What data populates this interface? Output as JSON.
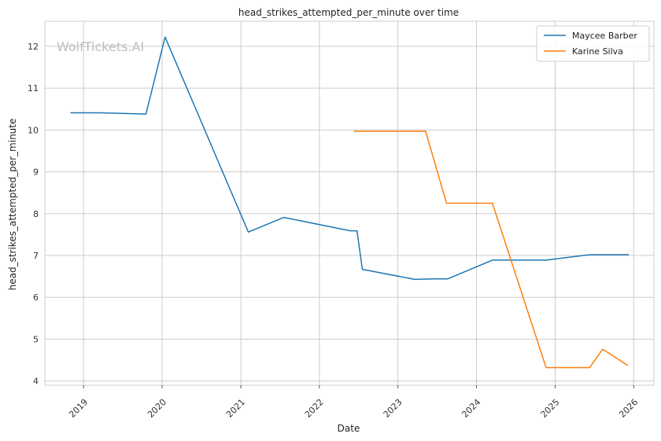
{
  "chart_data": {
    "type": "line",
    "title": "head_strikes_attempted_per_minute over time",
    "xlabel": "Date",
    "ylabel": "head_strikes_attempted_per_minute",
    "watermark": "WolfTickets.AI",
    "grid": true,
    "legend_position": "top-right",
    "x_ticks": [
      "2019",
      "2020",
      "2021",
      "2022",
      "2023",
      "2024",
      "2025",
      "2026"
    ],
    "y_ticks": [
      4,
      5,
      6,
      7,
      8,
      9,
      10,
      11,
      12
    ],
    "xlim": [
      "2018-07-05",
      "2026-04-05"
    ],
    "ylim": [
      3.9,
      12.6
    ],
    "series": [
      {
        "name": "Maycee Barber",
        "color": "#1f77b4",
        "points": [
          [
            "2018-11-01",
            10.41
          ],
          [
            "2019-03-20",
            10.41
          ],
          [
            "2019-10-18",
            10.38
          ],
          [
            "2020-01-15",
            12.22
          ],
          [
            "2021-02-05",
            7.56
          ],
          [
            "2021-07-20",
            7.91
          ],
          [
            "2022-05-25",
            7.59
          ],
          [
            "2022-06-25",
            7.59
          ],
          [
            "2022-07-20",
            6.67
          ],
          [
            "2023-03-20",
            6.43
          ],
          [
            "2023-06-20",
            6.44
          ],
          [
            "2023-08-20",
            6.44
          ],
          [
            "2024-03-15",
            6.89
          ],
          [
            "2024-11-20",
            6.89
          ],
          [
            "2025-06-10",
            7.02
          ],
          [
            "2025-12-10",
            7.02
          ]
        ]
      },
      {
        "name": "Karine Silva",
        "color": "#ff7f0e",
        "points": [
          [
            "2022-06-10",
            9.97
          ],
          [
            "2023-05-10",
            9.97
          ],
          [
            "2023-08-15",
            8.25
          ],
          [
            "2024-03-15",
            8.25
          ],
          [
            "2024-11-20",
            4.32
          ],
          [
            "2025-06-10",
            4.32
          ],
          [
            "2025-08-10",
            4.76
          ],
          [
            "2025-12-05",
            4.37
          ]
        ]
      }
    ]
  }
}
